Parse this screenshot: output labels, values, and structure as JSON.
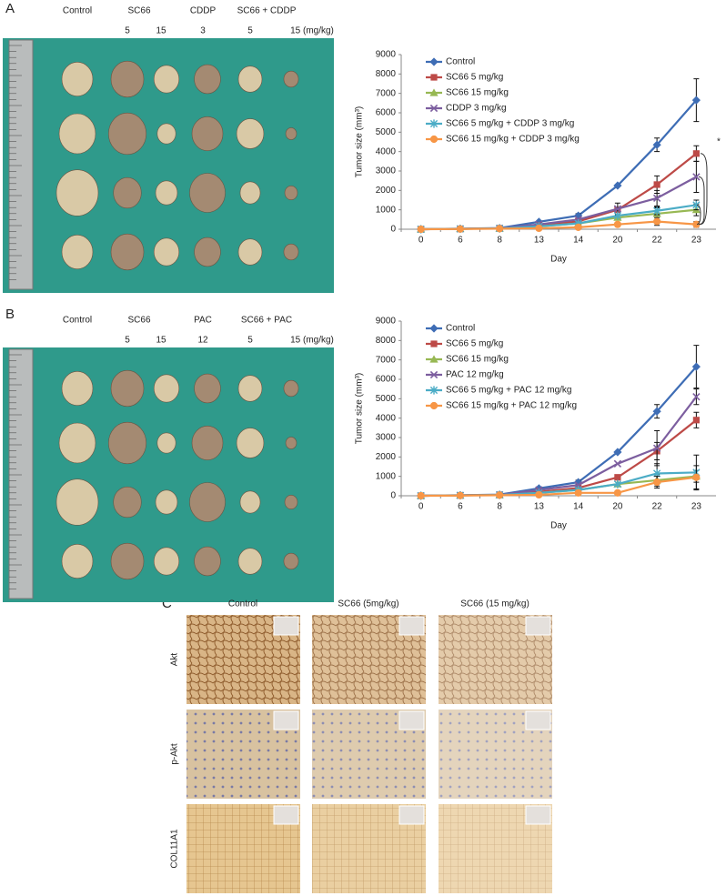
{
  "panels": [
    {
      "label": "A",
      "groups": [
        "Control",
        "SC66",
        "CDDP",
        "SC66 + CDDP"
      ],
      "doses": [
        "5",
        "15",
        "3",
        "5",
        "15 (mg/kg)"
      ]
    },
    {
      "label": "B",
      "groups": [
        "Control",
        "SC66",
        "PAC",
        "SC66 + PAC"
      ],
      "doses": [
        "5",
        "15",
        "12",
        "5",
        "15 (mg/kg)"
      ]
    },
    {
      "label": "C",
      "columns": [
        "Control",
        "SC66 (5mg/kg)",
        "SC66 (15 mg/kg)"
      ],
      "rows": [
        "Akt",
        "p-Akt",
        "COL11A1"
      ]
    }
  ],
  "chart_data": [
    {
      "type": "line",
      "xlabel": "Day",
      "ylabel": "Tumor size (mm³)",
      "categories": [
        "0",
        "6",
        "8",
        "13",
        "14",
        "20",
        "22",
        "23"
      ],
      "ylim": [
        0,
        9000
      ],
      "yticks": [
        0,
        1000,
        2000,
        3000,
        4000,
        5000,
        6000,
        7000,
        8000,
        9000
      ],
      "annotation": "*",
      "series": [
        {
          "name": "Control",
          "color": "#3e6db5",
          "marker": "diamond",
          "values": [
            0,
            30,
            60,
            380,
            700,
            2250,
            4350,
            6650
          ],
          "errors": [
            null,
            null,
            null,
            null,
            100,
            null,
            350,
            1100
          ]
        },
        {
          "name": "SC66 5 mg/kg",
          "color": "#bd4a47",
          "marker": "square",
          "values": [
            0,
            20,
            50,
            200,
            400,
            1000,
            2300,
            3900
          ],
          "errors": [
            null,
            null,
            null,
            null,
            null,
            null,
            450,
            400
          ]
        },
        {
          "name": "SC66 15 mg/kg",
          "color": "#97b853",
          "marker": "triangle",
          "values": [
            0,
            20,
            40,
            150,
            300,
            600,
            800,
            1000
          ],
          "errors": [
            null,
            null,
            null,
            null,
            null,
            null,
            300,
            300
          ]
        },
        {
          "name": "CDDP 3 mg/kg",
          "color": "#7c5e9f",
          "marker": "x",
          "values": [
            0,
            20,
            50,
            250,
            500,
            1050,
            1600,
            2700
          ],
          "errors": [
            null,
            null,
            null,
            null,
            null,
            300,
            400,
            800
          ]
        },
        {
          "name": "SC66 5 mg/kg + CDDP 3 mg/kg",
          "color": "#4bacc6",
          "marker": "star",
          "values": [
            0,
            20,
            40,
            150,
            300,
            700,
            950,
            1250
          ],
          "errors": [
            null,
            null,
            null,
            null,
            null,
            null,
            200,
            250
          ]
        },
        {
          "name": "SC66 15 mg/kg + CDDP 3 mg/kg",
          "color": "#f79646",
          "marker": "circle",
          "values": [
            0,
            10,
            30,
            50,
            100,
            250,
            400,
            250
          ],
          "errors": [
            null,
            null,
            null,
            null,
            null,
            null,
            200,
            150
          ]
        }
      ]
    },
    {
      "type": "line",
      "xlabel": "Day",
      "ylabel": "Tumor size (mm³)",
      "categories": [
        "0",
        "6",
        "8",
        "13",
        "14",
        "20",
        "22",
        "23"
      ],
      "ylim": [
        0,
        9000
      ],
      "yticks": [
        0,
        1000,
        2000,
        3000,
        4000,
        5000,
        6000,
        7000,
        8000,
        9000
      ],
      "series": [
        {
          "name": "Control",
          "color": "#3e6db5",
          "marker": "diamond",
          "values": [
            0,
            30,
            60,
            380,
            700,
            2250,
            4350,
            6650
          ],
          "errors": [
            null,
            null,
            null,
            null,
            100,
            null,
            350,
            1100
          ]
        },
        {
          "name": "SC66 5 mg/kg",
          "color": "#bd4a47",
          "marker": "square",
          "values": [
            0,
            20,
            50,
            200,
            400,
            950,
            2300,
            3900
          ],
          "errors": [
            null,
            null,
            null,
            null,
            null,
            null,
            450,
            400
          ]
        },
        {
          "name": "SC66 15 mg/kg",
          "color": "#97b853",
          "marker": "triangle",
          "values": [
            0,
            20,
            40,
            150,
            300,
            600,
            800,
            1000
          ],
          "errors": [
            null,
            null,
            null,
            null,
            null,
            null,
            300,
            300
          ]
        },
        {
          "name": "PAC 12 mg/kg",
          "color": "#7c5e9f",
          "marker": "x",
          "values": [
            0,
            20,
            50,
            300,
            550,
            1650,
            2450,
            5100
          ],
          "errors": [
            null,
            null,
            null,
            null,
            null,
            null,
            900,
            400
          ]
        },
        {
          "name": "SC66 5 mg/kg + PAC 12 mg/kg",
          "color": "#4bacc6",
          "marker": "star",
          "values": [
            0,
            20,
            40,
            150,
            300,
            600,
            1150,
            1200
          ],
          "errors": [
            null,
            null,
            null,
            null,
            null,
            null,
            500,
            900
          ]
        },
        {
          "name": "SC66 15 mg/kg + PAC 12 mg/kg",
          "color": "#f79646",
          "marker": "circle",
          "values": [
            0,
            10,
            30,
            50,
            150,
            150,
            700,
            950
          ],
          "errors": [
            null,
            null,
            null,
            null,
            null,
            null,
            300,
            600
          ]
        }
      ]
    }
  ]
}
